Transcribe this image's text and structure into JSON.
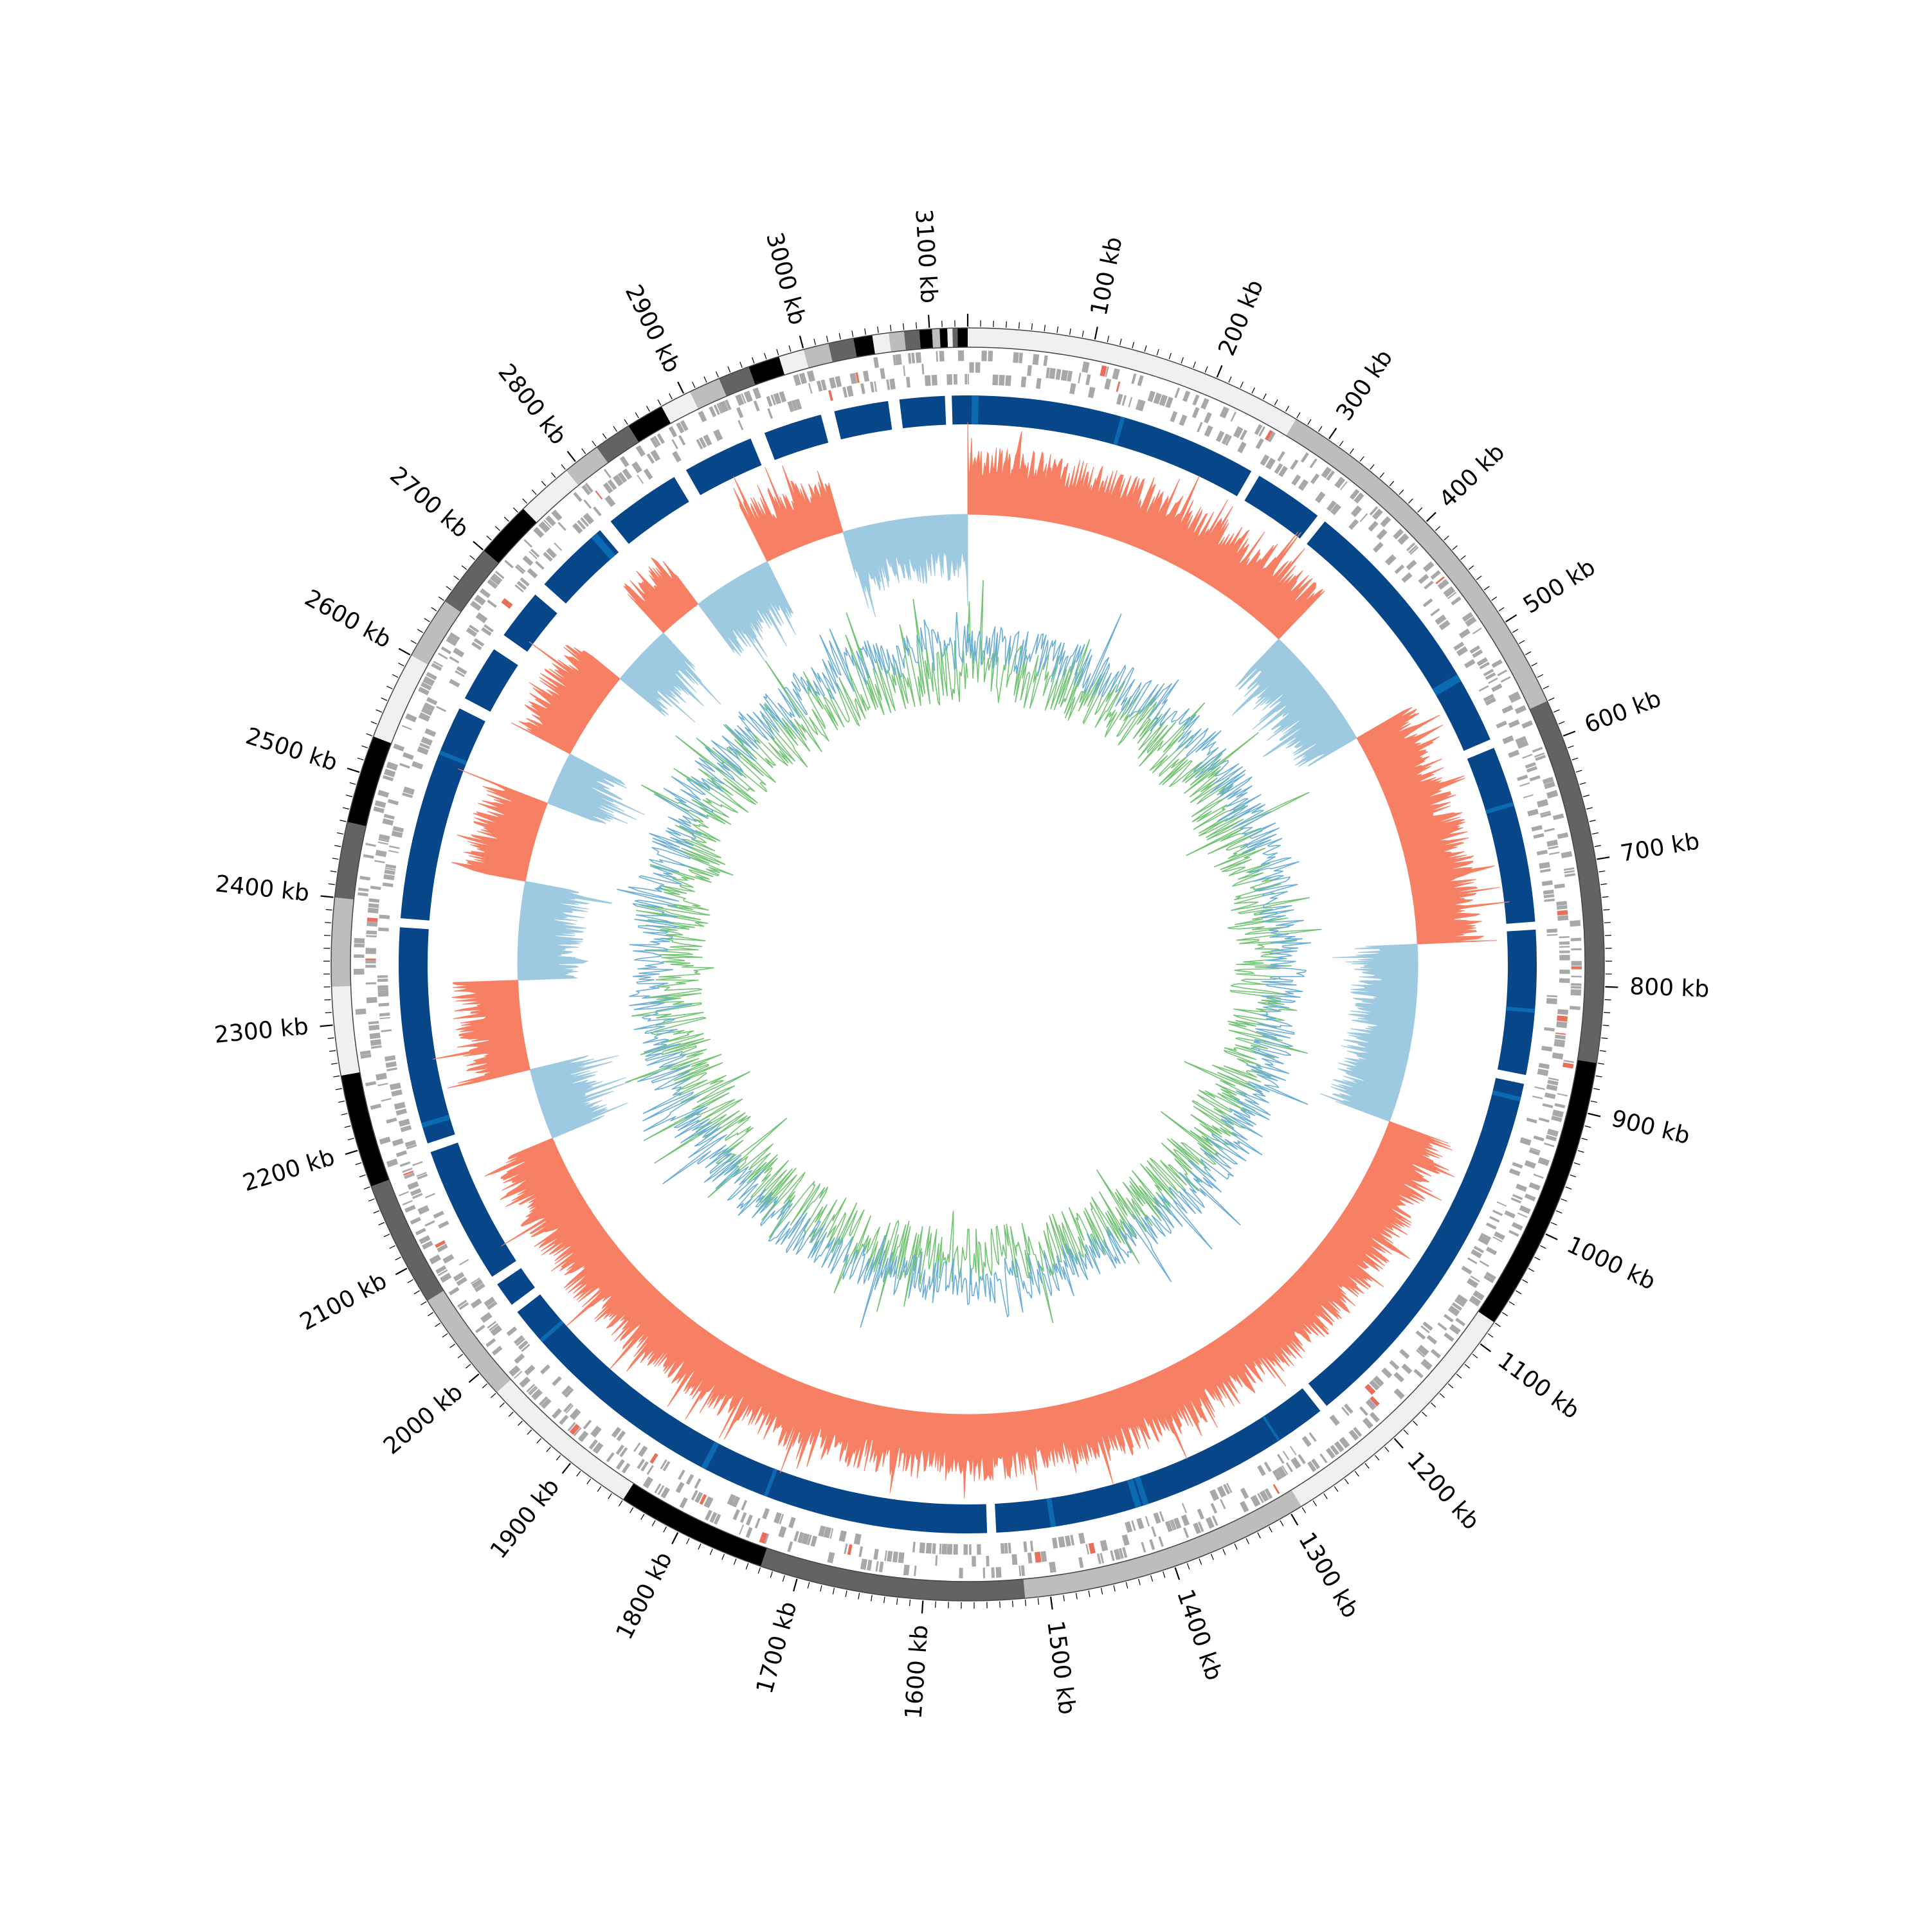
{
  "chart_data": {
    "type": "circos",
    "title": "",
    "genome_length_kb": 3130,
    "tick_unit": "kb",
    "tick_labels": [
      "100 kb",
      "200 kb",
      "300 kb",
      "400 kb",
      "500 kb",
      "600 kb",
      "700 kb",
      "800 kb",
      "900 kb",
      "1000 kb",
      "1100 kb",
      "1200 kb",
      "1300 kb",
      "1400 kb",
      "1500 kb",
      "1600 kb",
      "1700 kb",
      "1800 kb",
      "1900 kb",
      "2000 kb",
      "2100 kb",
      "2200 kb",
      "2300 kb",
      "2400 kb",
      "2500 kb",
      "2600 kb",
      "2700 kb",
      "2800 kb",
      "2900 kb",
      "3000 kb",
      "3100 kb"
    ],
    "ideogram_bands": [
      {
        "start": 0,
        "end": 270,
        "shade": "#f0f0f0"
      },
      {
        "start": 270,
        "end": 570,
        "shade": "#bdbdbd"
      },
      {
        "start": 570,
        "end": 860,
        "shade": "#636363"
      },
      {
        "start": 860,
        "end": 1080,
        "shade": "#000000"
      },
      {
        "start": 1080,
        "end": 1290,
        "shade": "#f0f0f0"
      },
      {
        "start": 1290,
        "end": 1520,
        "shade": "#bdbdbd"
      },
      {
        "start": 1520,
        "end": 1730,
        "shade": "#636363"
      },
      {
        "start": 1730,
        "end": 1850,
        "shade": "#000000"
      },
      {
        "start": 1850,
        "end": 1980,
        "shade": "#f0f0f0"
      },
      {
        "start": 1980,
        "end": 2070,
        "shade": "#bdbdbd"
      },
      {
        "start": 2070,
        "end": 2170,
        "shade": "#636363"
      },
      {
        "start": 2170,
        "end": 2260,
        "shade": "#000000"
      },
      {
        "start": 2260,
        "end": 2330,
        "shade": "#f0f0f0"
      },
      {
        "start": 2330,
        "end": 2400,
        "shade": "#bdbdbd"
      },
      {
        "start": 2400,
        "end": 2460,
        "shade": "#636363"
      },
      {
        "start": 2460,
        "end": 2530,
        "shade": "#000000"
      },
      {
        "start": 2530,
        "end": 2600,
        "shade": "#f0f0f0"
      },
      {
        "start": 2600,
        "end": 2650,
        "shade": "#bdbdbd"
      },
      {
        "start": 2650,
        "end": 2700,
        "shade": "#636363"
      },
      {
        "start": 2700,
        "end": 2745,
        "shade": "#000000"
      },
      {
        "start": 2745,
        "end": 2790,
        "shade": "#f0f0f0"
      },
      {
        "start": 2790,
        "end": 2820,
        "shade": "#bdbdbd"
      },
      {
        "start": 2820,
        "end": 2850,
        "shade": "#636363"
      },
      {
        "start": 2850,
        "end": 2880,
        "shade": "#000000"
      },
      {
        "start": 2880,
        "end": 2905,
        "shade": "#f0f0f0"
      },
      {
        "start": 2905,
        "end": 2930,
        "shade": "#bdbdbd"
      },
      {
        "start": 2930,
        "end": 2955,
        "shade": "#636363"
      },
      {
        "start": 2955,
        "end": 2980,
        "shade": "#000000"
      },
      {
        "start": 2980,
        "end": 3000,
        "shade": "#f0f0f0"
      },
      {
        "start": 3000,
        "end": 3020,
        "shade": "#bdbdbd"
      },
      {
        "start": 3020,
        "end": 3040,
        "shade": "#636363"
      },
      {
        "start": 3040,
        "end": 3055,
        "shade": "#000000"
      },
      {
        "start": 3055,
        "end": 3068,
        "shade": "#f0f0f0"
      },
      {
        "start": 3068,
        "end": 3080,
        "shade": "#bdbdbd"
      },
      {
        "start": 3080,
        "end": 3092,
        "shade": "#636363"
      },
      {
        "start": 3092,
        "end": 3102,
        "shade": "#000000"
      },
      {
        "start": 3102,
        "end": 3108,
        "shade": "#bdbdbd"
      },
      {
        "start": 3108,
        "end": 3114,
        "shade": "#000000"
      },
      {
        "start": 3114,
        "end": 3118,
        "shade": "#f0f0f0"
      },
      {
        "start": 3118,
        "end": 3122,
        "shade": "#636363"
      },
      {
        "start": 3122,
        "end": 3130,
        "shade": "#000000"
      }
    ],
    "block_segments": [
      {
        "start": 0,
        "end": 260
      },
      {
        "start": 268,
        "end": 330
      },
      {
        "start": 338,
        "end": 580
      },
      {
        "start": 588,
        "end": 745
      },
      {
        "start": 752,
        "end": 880
      },
      {
        "start": 888,
        "end": 1225
      },
      {
        "start": 1232,
        "end": 1540
      },
      {
        "start": 1548,
        "end": 2020
      },
      {
        "start": 2028,
        "end": 2050
      },
      {
        "start": 2058,
        "end": 2180
      },
      {
        "start": 2188,
        "end": 2380
      },
      {
        "start": 2388,
        "end": 2580
      },
      {
        "start": 2590,
        "end": 2640
      },
      {
        "start": 2655,
        "end": 2700
      },
      {
        "start": 2712,
        "end": 2780
      },
      {
        "start": 2792,
        "end": 2860
      },
      {
        "start": 2872,
        "end": 2935
      },
      {
        "start": 2948,
        "end": 3000
      },
      {
        "start": 3012,
        "end": 3060
      },
      {
        "start": 3070,
        "end": 3110
      },
      {
        "start": 3116,
        "end": 3130
      }
    ],
    "gc_skew_blocks": [
      {
        "start": 0,
        "end": 380,
        "sign": "positive"
      },
      {
        "start": 380,
        "end": 520,
        "sign": "negative"
      },
      {
        "start": 520,
        "end": 760,
        "sign": "positive"
      },
      {
        "start": 760,
        "end": 960,
        "sign": "negative"
      },
      {
        "start": 960,
        "end": 2150,
        "sign": "positive"
      },
      {
        "start": 2150,
        "end": 2230,
        "sign": "negative"
      },
      {
        "start": 2230,
        "end": 2330,
        "sign": "positive"
      },
      {
        "start": 2330,
        "end": 2440,
        "sign": "negative"
      },
      {
        "start": 2440,
        "end": 2530,
        "sign": "positive"
      },
      {
        "start": 2530,
        "end": 2590,
        "sign": "negative"
      },
      {
        "start": 2590,
        "end": 2690,
        "sign": "positive"
      },
      {
        "start": 2690,
        "end": 2760,
        "sign": "negative"
      },
      {
        "start": 2760,
        "end": 2810,
        "sign": "positive"
      },
      {
        "start": 2810,
        "end": 2900,
        "sign": "negative"
      },
      {
        "start": 2900,
        "end": 2990,
        "sign": "positive"
      },
      {
        "start": 2990,
        "end": 3130,
        "sign": "negative"
      }
    ],
    "series": [
      {
        "color": "#6baed6"
      },
      {
        "color": "#74c476"
      }
    ],
    "colors": {
      "ideogram_outline": "#444444",
      "gene_feature": "#a8a8a8",
      "rna_feature": "#e8705a",
      "block_fill": "#08468a",
      "block_alt": "#0b6ab1",
      "skew_positive": "#f77f64",
      "skew_negative": "#9ecae1",
      "gc_content": "#6baed6",
      "gc_deviation": "#74c476",
      "text": "#000000"
    }
  }
}
